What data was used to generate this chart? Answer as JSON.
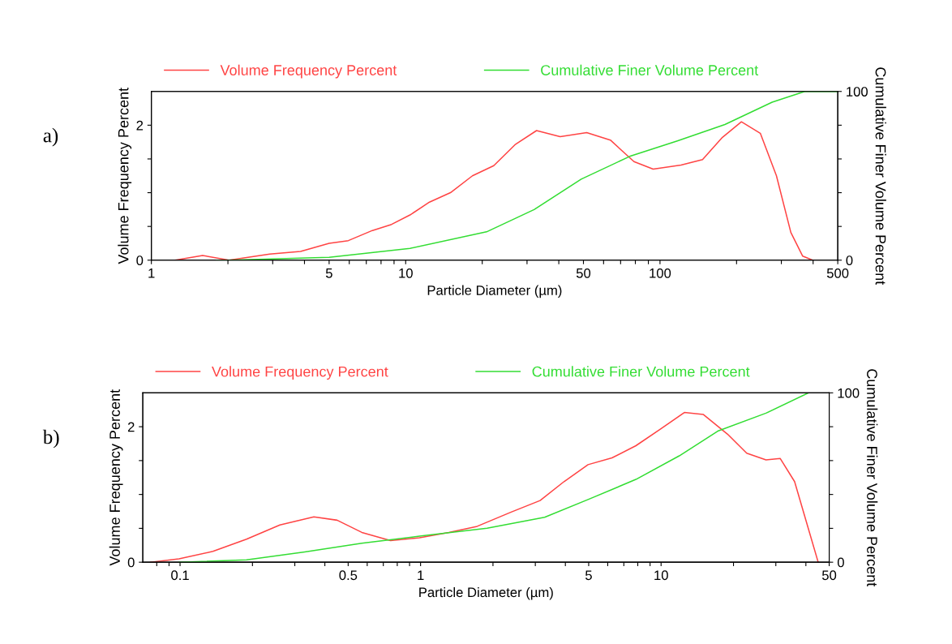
{
  "chart_data": [
    {
      "type": "line",
      "xlabel": "Particle Diameter (µm)",
      "ylabel": "Volume Frequency Percent",
      "y2label": "Cumulative Finer Volume Percent",
      "annotations": [
        "a)"
      ],
      "log": "x",
      "legend": "top",
      "grid": false,
      "xlim": [
        1,
        500
      ],
      "xticks": [
        1,
        {
          "value": 2,
          "label": null
        },
        {
          "value": 3,
          "label": null
        },
        {
          "value": 4,
          "label": null
        },
        5,
        {
          "value": 6,
          "label": null
        },
        {
          "value": 7,
          "label": null
        },
        {
          "value": 8,
          "label": null
        },
        {
          "value": 9,
          "label": null
        },
        10,
        {
          "value": 20,
          "label": null
        },
        {
          "value": 30,
          "label": null
        },
        {
          "value": 40,
          "label": null
        },
        50,
        {
          "value": 60,
          "label": null
        },
        {
          "value": 70,
          "label": null
        },
        {
          "value": 80,
          "label": null
        },
        {
          "value": 90,
          "label": null
        },
        100,
        {
          "value": 200,
          "label": null
        },
        {
          "value": 300,
          "label": null
        },
        {
          "value": 400,
          "label": null
        },
        500
      ],
      "ylim": [
        0,
        2.5
      ],
      "yticks": [
        0,
        {
          "value": 0.5,
          "label": null
        },
        {
          "value": 1,
          "label": null
        },
        {
          "value": 1.5,
          "label": null
        },
        2
      ],
      "y2lim": [
        0,
        100
      ],
      "y2ticks": [
        0,
        {
          "value": 20,
          "label": null
        },
        {
          "value": 40,
          "label": null
        },
        {
          "value": 60,
          "label": null
        },
        {
          "value": 80,
          "label": null
        },
        100
      ],
      "series": [
        {
          "name": "Volume Frequency Percent",
          "color": "#ff4444",
          "x": [
            1.24,
            1.59,
            2.02,
            2.92,
            3.86,
            5.0,
            5.95,
            7.4,
            8.8,
            10.4,
            12.4,
            15.0,
            18.3,
            22.2,
            26.9,
            32.7,
            40.5,
            51.5,
            63.8,
            79,
            94,
            121,
            147,
            176,
            209,
            248,
            287,
            327,
            364,
            398
          ],
          "values": [
            0,
            0.07,
            0,
            0.09,
            0.13,
            0.25,
            0.29,
            0.44,
            0.53,
            0.67,
            0.86,
            1.0,
            1.25,
            1.4,
            1.71,
            1.92,
            1.83,
            1.89,
            1.78,
            1.46,
            1.35,
            1.41,
            1.49,
            1.82,
            2.05,
            1.88,
            1.25,
            0.41,
            0.06,
            0
          ]
        },
        {
          "name": "Cumulative Finer Volume Percent",
          "color": "#33dd33",
          "axis": "y2",
          "x": [
            1.8,
            2.02,
            5.0,
            10.4,
            20.8,
            32,
            49,
            76,
            117,
            180,
            276,
            371,
            500
          ],
          "values": [
            0,
            0,
            1.7,
            7,
            16.8,
            30,
            48,
            61.5,
            70.7,
            80.4,
            93.6,
            100,
            100
          ]
        }
      ]
    },
    {
      "type": "line",
      "xlabel": "Particle Diameter (µm)",
      "ylabel": "Volume Frequency Percent",
      "y2label": "Cumulative Finer Volume Percent",
      "annotations": [
        "b)"
      ],
      "log": "x",
      "legend": "top",
      "grid": false,
      "xlim": [
        0.07,
        50
      ],
      "xticks": [
        {
          "value": 0.08,
          "label": null
        },
        {
          "value": 0.09,
          "label": null
        },
        0.1,
        {
          "value": 0.2,
          "label": null
        },
        {
          "value": 0.3,
          "label": null
        },
        {
          "value": 0.4,
          "label": null
        },
        0.5,
        {
          "value": 0.6,
          "label": null
        },
        {
          "value": 0.7,
          "label": null
        },
        {
          "value": 0.8,
          "label": null
        },
        {
          "value": 0.9,
          "label": null
        },
        1,
        {
          "value": 2,
          "label": null
        },
        {
          "value": 3,
          "label": null
        },
        {
          "value": 4,
          "label": null
        },
        5,
        {
          "value": 6,
          "label": null
        },
        {
          "value": 7,
          "label": null
        },
        {
          "value": 8,
          "label": null
        },
        {
          "value": 9,
          "label": null
        },
        10,
        {
          "value": 20,
          "label": null
        },
        {
          "value": 30,
          "label": null
        },
        {
          "value": 40,
          "label": null
        },
        50
      ],
      "ylim": [
        0,
        2.5
      ],
      "yticks": [
        0,
        {
          "value": 0.5,
          "label": null
        },
        {
          "value": 1,
          "label": null
        },
        {
          "value": 1.5,
          "label": null
        },
        2
      ],
      "y2lim": [
        0,
        100
      ],
      "y2ticks": [
        0,
        {
          "value": 20,
          "label": null
        },
        {
          "value": 40,
          "label": null
        },
        {
          "value": 60,
          "label": null
        },
        {
          "value": 80,
          "label": null
        },
        100
      ],
      "series": [
        {
          "name": "Volume Frequency Percent",
          "color": "#ff4444",
          "x": [
            0.0754,
            0.099,
            0.137,
            0.189,
            0.26,
            0.36,
            0.45,
            0.57,
            0.75,
            0.99,
            1.31,
            1.72,
            2.38,
            3.14,
            3.95,
            4.97,
            6.25,
            7.86,
            9.9,
            12.5,
            15,
            18.9,
            22.7,
            27.3,
            31.3,
            35.9,
            41,
            45
          ],
          "values": [
            0,
            0.05,
            0.16,
            0.34,
            0.55,
            0.67,
            0.62,
            0.44,
            0.32,
            0.36,
            0.44,
            0.53,
            0.74,
            0.91,
            1.19,
            1.44,
            1.54,
            1.72,
            1.96,
            2.21,
            2.18,
            1.89,
            1.61,
            1.51,
            1.53,
            1.19,
            0.49,
            0
          ]
        },
        {
          "name": "Cumulative Finer Volume Percent",
          "color": "#33dd33",
          "axis": "y2",
          "x": [
            0.099,
            0.189,
            0.33,
            0.57,
            0.99,
            1.89,
            3.28,
            4.97,
            7.86,
            11.9,
            17.2,
            27.3,
            41
          ],
          "values": [
            0,
            1.4,
            6.1,
            11.2,
            15.4,
            20.1,
            26.5,
            37,
            48.9,
            62.8,
            77.4,
            88,
            100
          ]
        }
      ]
    }
  ]
}
